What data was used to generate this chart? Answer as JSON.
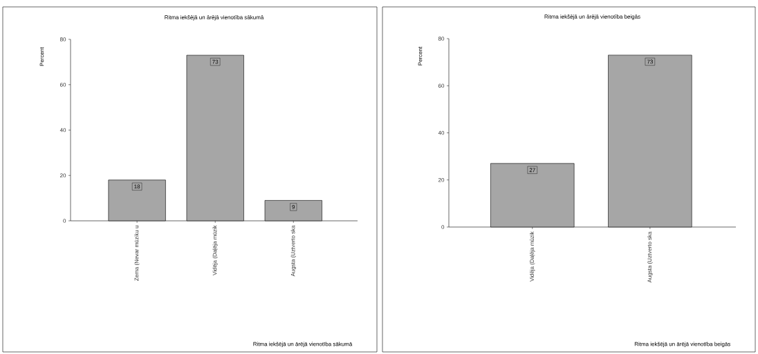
{
  "chart_data": [
    {
      "type": "bar",
      "title": "Ritma iekšējā un ārējā vienotība sākumā",
      "xlabel": "Ritma iekšējā un ārējā vienotība sākumā",
      "ylabel": "Percent",
      "categories": [
        "Zema (Nevar mūziku u",
        "Vidēja (Daļēja mūzik",
        "Augsta (Uztverto ska"
      ],
      "values": [
        18,
        73,
        9
      ],
      "color": "#a6a6a6",
      "ylim": [
        0,
        80
      ],
      "yticks": [
        0,
        20,
        40,
        60,
        80
      ],
      "data_labels": true
    },
    {
      "type": "bar",
      "title": "Ritma iekšējā un ārējā vienotība beigās",
      "xlabel": "Ritma iekšējā un ārējā vienotība beigās",
      "ylabel": "Percent",
      "categories": [
        "Vidēja (Daļēja mūzik",
        "Augsta (Uztverto ska"
      ],
      "values": [
        27,
        73
      ],
      "color": "#a6a6a6",
      "ylim": [
        0,
        80
      ],
      "yticks": [
        0,
        20,
        40,
        60,
        80
      ],
      "data_labels": true
    }
  ]
}
